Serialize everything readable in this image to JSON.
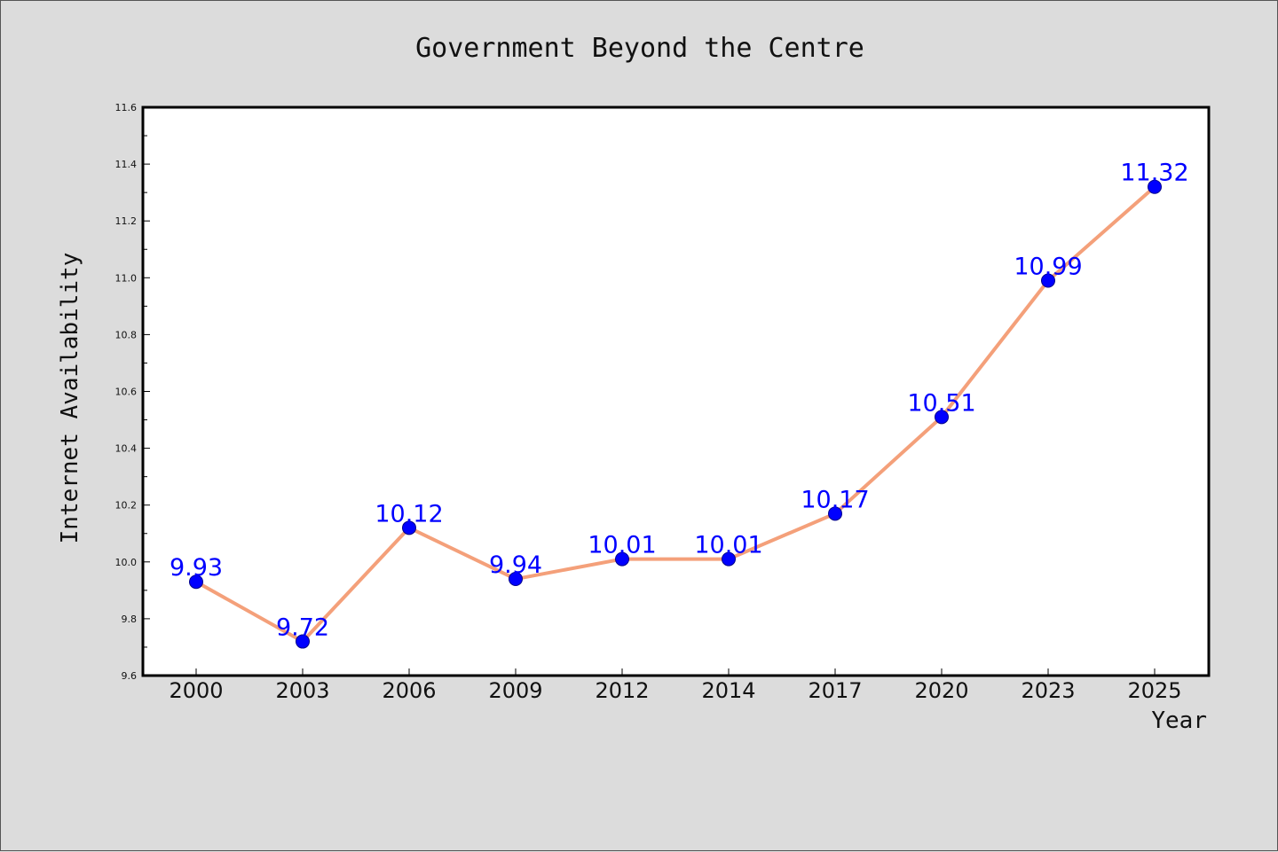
{
  "chart_data": {
    "type": "line",
    "title": "Government Beyond the Centre",
    "xlabel": "Year",
    "ylabel": "Internet Availability",
    "categories": [
      "2000",
      "2003",
      "2006",
      "2009",
      "2012",
      "2014",
      "2017",
      "2020",
      "2023",
      "2025"
    ],
    "series": [
      {
        "values": [
          9.93,
          9.72,
          10.12,
          9.94,
          10.01,
          10.01,
          10.17,
          10.51,
          10.99,
          11.32
        ],
        "labels": [
          "9.93",
          "9.72",
          "10.12",
          "9.94",
          "10.01",
          "10.01",
          "10.17",
          "10.51",
          "10.99",
          "11.32"
        ]
      }
    ],
    "ylim": [
      9.6,
      11.6
    ],
    "yticks": [
      "9.6",
      "9.8",
      "10.0",
      "10.2",
      "10.4",
      "10.6",
      "10.8",
      "11.0",
      "11.2",
      "11.4",
      "11.6"
    ],
    "grid": false,
    "colors": {
      "line": "#f4a07a",
      "marker": "#0000ff",
      "marker_edge": "#00008b",
      "data_label": "#0000ff",
      "plot_background": "#ffffff",
      "figure_background": "#dcdcdc"
    }
  }
}
